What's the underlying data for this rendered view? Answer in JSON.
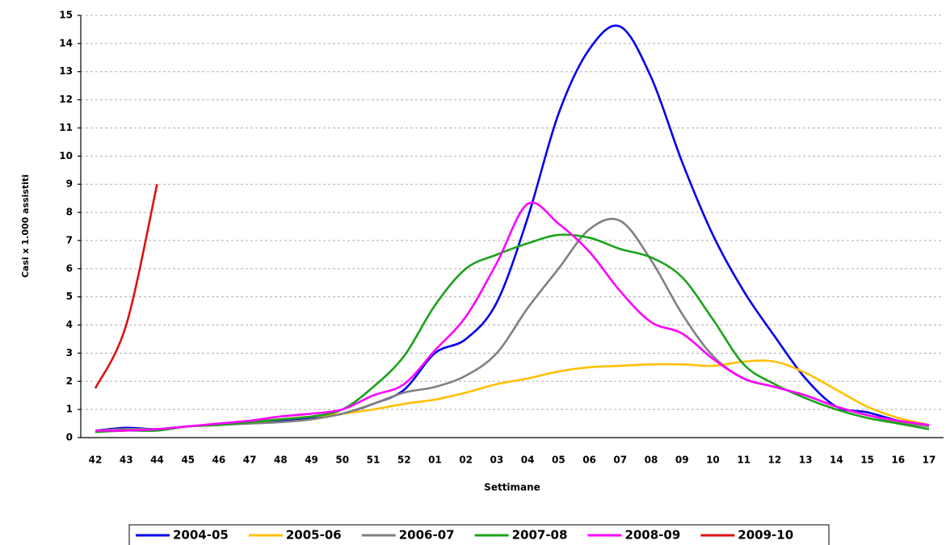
{
  "chart_data": {
    "type": "line",
    "x_label": "Settimane",
    "y_label": "Casi x 1.000 assistiti",
    "categories": [
      "42",
      "43",
      "44",
      "45",
      "46",
      "47",
      "48",
      "49",
      "50",
      "51",
      "52",
      "01",
      "02",
      "03",
      "04",
      "05",
      "06",
      "07",
      "08",
      "09",
      "10",
      "11",
      "12",
      "13",
      "14",
      "15",
      "16",
      "17"
    ],
    "ylim": [
      0,
      15
    ],
    "yticks": [
      0,
      1,
      2,
      3,
      4,
      5,
      6,
      7,
      8,
      9,
      10,
      11,
      12,
      13,
      14,
      15
    ],
    "grid": true,
    "legend": "bottom",
    "series": [
      {
        "name": "2004-05",
        "color": "#0000ee",
        "values": [
          0.25,
          0.35,
          0.3,
          0.4,
          0.45,
          0.55,
          0.6,
          0.7,
          0.85,
          1.2,
          1.7,
          3.0,
          3.5,
          4.8,
          7.8,
          11.5,
          13.8,
          14.6,
          12.8,
          9.8,
          7.2,
          5.2,
          3.6,
          2.1,
          1.1,
          0.9,
          0.6,
          0.4
        ]
      },
      {
        "name": "2005-06",
        "color": "#ffc000",
        "values": [
          0.25,
          0.3,
          0.3,
          0.4,
          0.45,
          0.55,
          0.65,
          0.75,
          0.85,
          1.0,
          1.2,
          1.35,
          1.6,
          1.9,
          2.1,
          2.35,
          2.5,
          2.55,
          2.6,
          2.6,
          2.55,
          2.7,
          2.7,
          2.3,
          1.7,
          1.1,
          0.7,
          0.45
        ]
      },
      {
        "name": "2006-07",
        "color": "#808080",
        "values": [
          0.25,
          0.3,
          0.3,
          0.4,
          0.45,
          0.5,
          0.55,
          0.65,
          0.85,
          1.2,
          1.6,
          1.8,
          2.2,
          3.0,
          4.6,
          6.0,
          7.4,
          7.7,
          6.3,
          4.4,
          2.9,
          2.1,
          1.8,
          1.5,
          1.1,
          0.8,
          0.55,
          0.4
        ]
      },
      {
        "name": "2007-08",
        "color": "#1aa31a",
        "values": [
          0.2,
          0.25,
          0.25,
          0.4,
          0.45,
          0.55,
          0.65,
          0.75,
          1.0,
          1.8,
          2.9,
          4.7,
          6.0,
          6.5,
          6.9,
          7.2,
          7.1,
          6.7,
          6.4,
          5.7,
          4.2,
          2.6,
          1.9,
          1.4,
          1.0,
          0.7,
          0.5,
          0.3
        ]
      },
      {
        "name": "2008-09",
        "color": "#ff00ff",
        "values": [
          0.25,
          0.25,
          0.3,
          0.4,
          0.5,
          0.6,
          0.75,
          0.85,
          1.0,
          1.5,
          1.9,
          3.1,
          4.3,
          6.2,
          8.3,
          7.6,
          6.6,
          5.2,
          4.1,
          3.7,
          2.8,
          2.1,
          1.8,
          1.5,
          1.1,
          0.8,
          0.6,
          0.45
        ]
      },
      {
        "name": "2009-10",
        "color": "#dd1111",
        "values": [
          1.75,
          4.0,
          9.0,
          null,
          null,
          null,
          null,
          null,
          null,
          null,
          null,
          null,
          null,
          null,
          null,
          null,
          null,
          null,
          null,
          null,
          null,
          null,
          null,
          null,
          null,
          null,
          null,
          null
        ]
      }
    ]
  }
}
